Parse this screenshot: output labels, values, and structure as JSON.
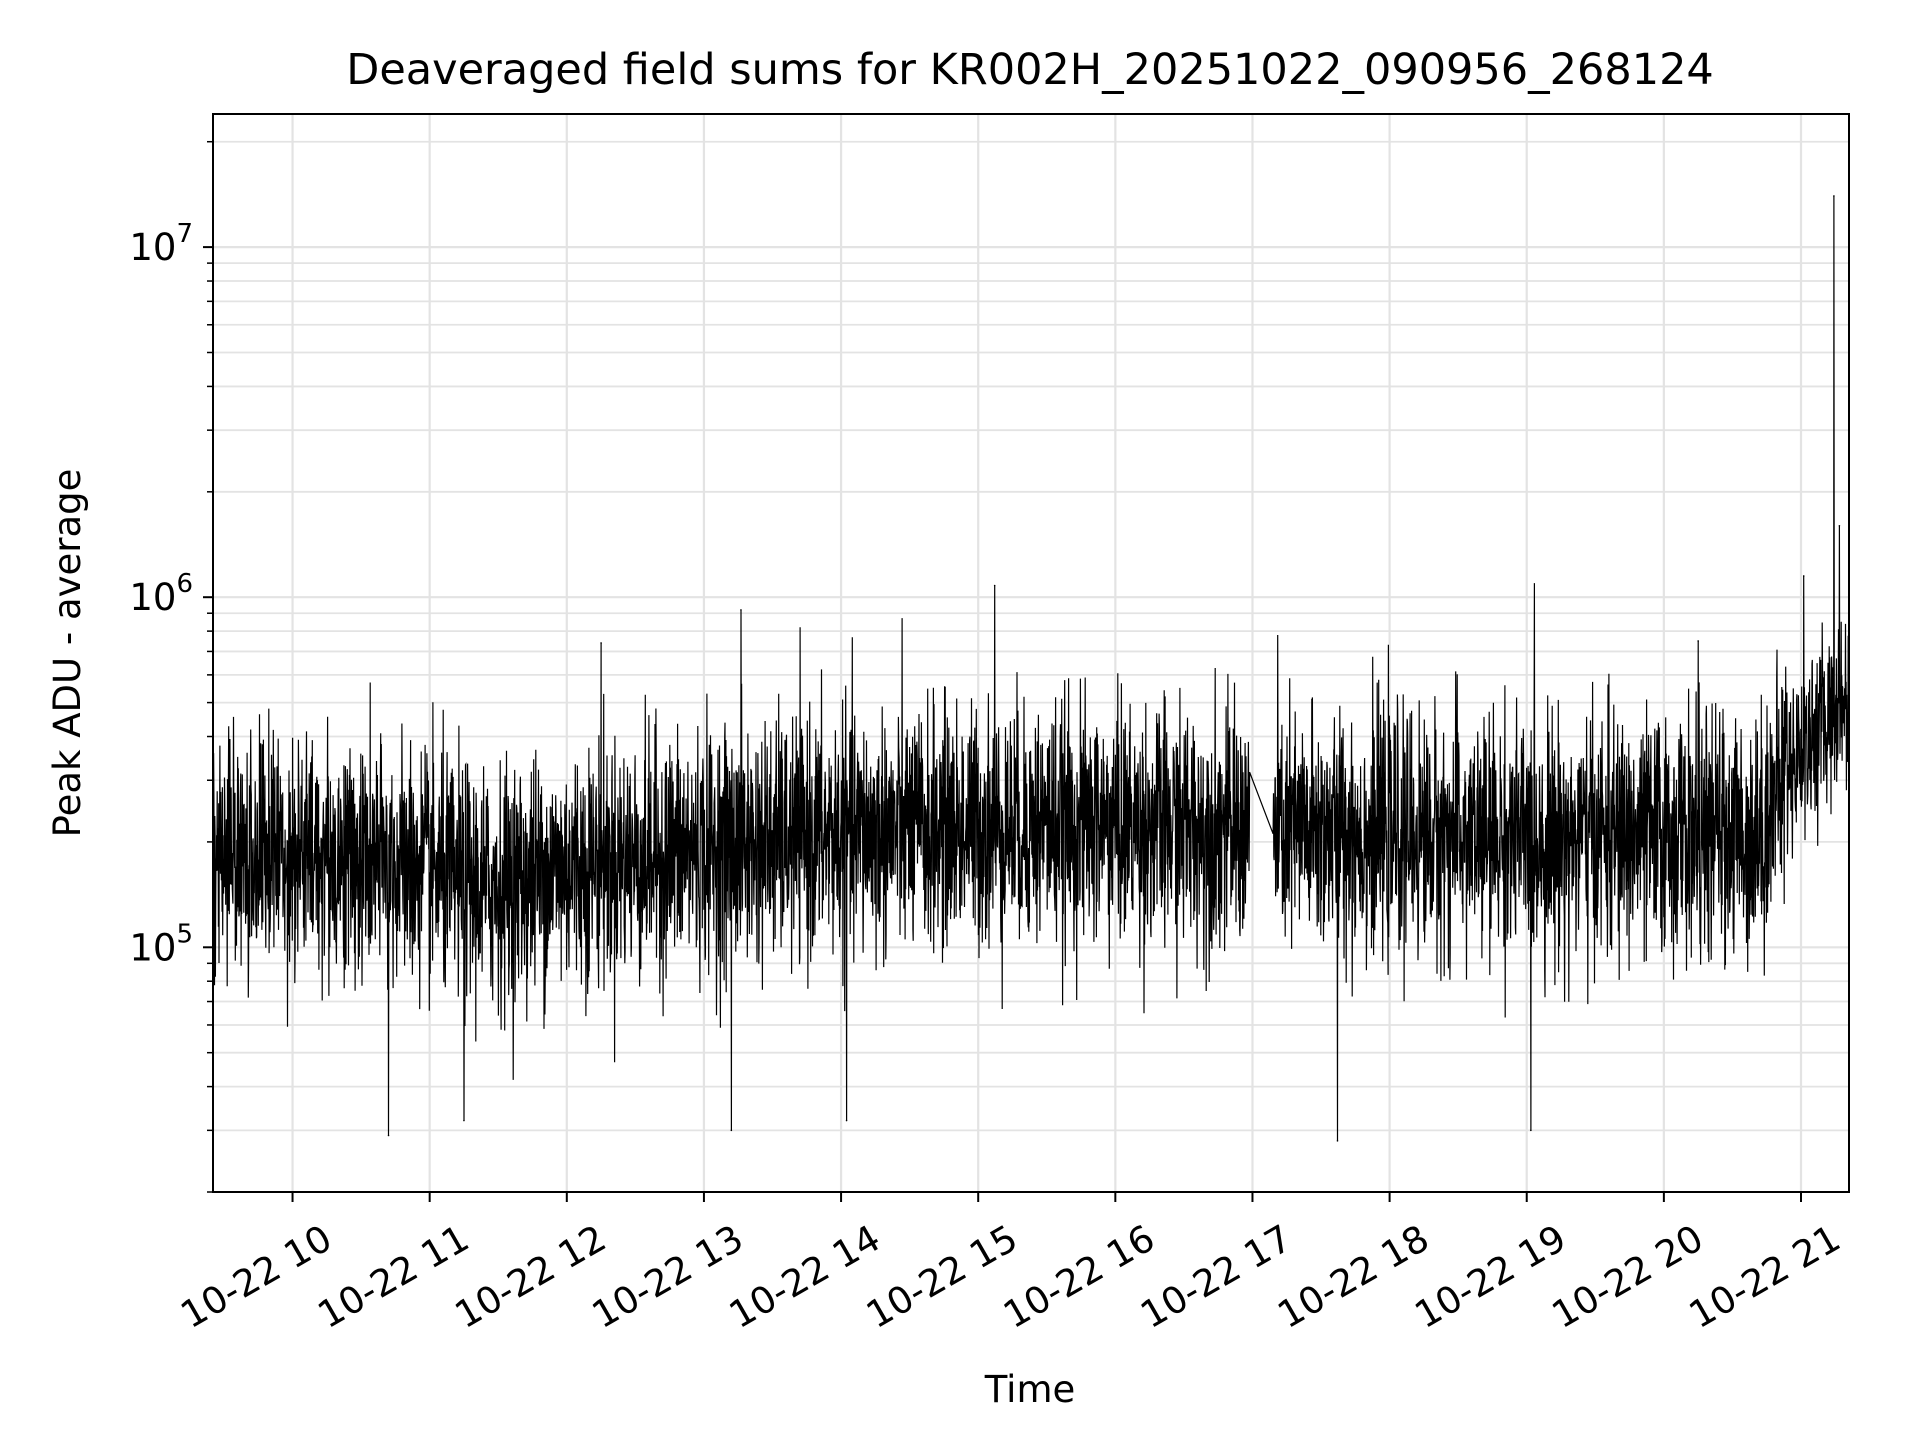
{
  "chart_data": {
    "type": "line",
    "title": "Deaveraged field sums for KR002H_20251022_090956_268124",
    "xlabel": "Time",
    "ylabel": "Peak ADU - average",
    "yscale": "log",
    "ylim": [
      20000,
      24000000
    ],
    "xlim_hours": [
      9.42,
      21.35
    ],
    "x_ticks": [
      {
        "hour": 10,
        "label": "10-22 10"
      },
      {
        "hour": 11,
        "label": "10-22 11"
      },
      {
        "hour": 12,
        "label": "10-22 12"
      },
      {
        "hour": 13,
        "label": "10-22 13"
      },
      {
        "hour": 14,
        "label": "10-22 14"
      },
      {
        "hour": 15,
        "label": "10-22 15"
      },
      {
        "hour": 16,
        "label": "10-22 16"
      },
      {
        "hour": 17,
        "label": "10-22 17"
      },
      {
        "hour": 18,
        "label": "10-22 18"
      },
      {
        "hour": 19,
        "label": "10-22 19"
      },
      {
        "hour": 20,
        "label": "10-22 20"
      },
      {
        "hour": 21,
        "label": "10-22 21"
      }
    ],
    "y_ticks": [
      {
        "value": 100000,
        "base": "10",
        "exp": "5"
      },
      {
        "value": 1000000,
        "base": "10",
        "exp": "6"
      },
      {
        "value": 10000000,
        "base": "10",
        "exp": "7"
      }
    ],
    "grid": true,
    "series": [
      {
        "name": "field sums",
        "color": "#000000",
        "median_profile": [
          {
            "hour": 9.42,
            "value": 200000
          },
          {
            "hour": 11.0,
            "value": 165000
          },
          {
            "hour": 11.4,
            "value": 145000
          },
          {
            "hour": 12.0,
            "value": 170000
          },
          {
            "hour": 14.0,
            "value": 210000
          },
          {
            "hour": 15.5,
            "value": 225000
          },
          {
            "hour": 17.0,
            "value": 215000
          },
          {
            "hour": 19.0,
            "value": 205000
          },
          {
            "hour": 20.7,
            "value": 210000
          },
          {
            "hour": 20.9,
            "value": 330000
          },
          {
            "hour": 21.35,
            "value": 520000
          }
        ],
        "gap_hours": [
          16.98,
          17.15
        ],
        "spikes": [
          {
            "hour": 21.24,
            "value": 14000000
          },
          {
            "hour": 21.28,
            "value": 1600000
          },
          {
            "hour": 15.12,
            "value": 1080000
          },
          {
            "hour": 13.27,
            "value": 920000
          },
          {
            "hour": 21.02,
            "value": 1150000
          },
          {
            "hour": 12.25,
            "value": 740000
          },
          {
            "hour": 20.25,
            "value": 750000
          }
        ],
        "dips": [
          {
            "hour": 10.7,
            "value": 29000
          },
          {
            "hour": 17.62,
            "value": 28000
          },
          {
            "hour": 13.2,
            "value": 30000
          },
          {
            "hour": 19.03,
            "value": 30000
          },
          {
            "hour": 14.04,
            "value": 32000
          },
          {
            "hour": 11.25,
            "value": 32000
          }
        ]
      }
    ]
  }
}
